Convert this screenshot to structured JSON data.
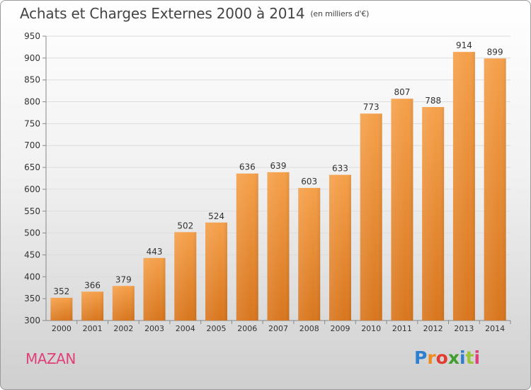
{
  "header": {
    "title": "Achats et Charges Externes 2000 à 2014",
    "unit": "(en milliers d'€)"
  },
  "footer": {
    "place": "MAZAN",
    "logo_text": "Proxiti"
  },
  "colors": {
    "bar_top": "#f5a04a",
    "bar_bottom": "#d8761e",
    "grid": "#dddddd",
    "axis_text": "#333333",
    "place": "#e0407a"
  },
  "chart_data": {
    "type": "bar",
    "title": "Achats et Charges Externes 2000 à 2014",
    "subtitle": "(en milliers d'€)",
    "xlabel": "",
    "ylabel": "",
    "categories": [
      "2000",
      "2001",
      "2002",
      "2003",
      "2004",
      "2005",
      "2006",
      "2007",
      "2008",
      "2009",
      "2010",
      "2011",
      "2012",
      "2013",
      "2014"
    ],
    "values": [
      352,
      366,
      379,
      443,
      502,
      524,
      636,
      639,
      603,
      633,
      773,
      807,
      788,
      914,
      899
    ],
    "ylim": [
      300,
      950
    ],
    "yticks": [
      300,
      350,
      400,
      450,
      500,
      550,
      600,
      650,
      700,
      750,
      800,
      850,
      900,
      950
    ],
    "grid": true,
    "data_labels": true
  }
}
